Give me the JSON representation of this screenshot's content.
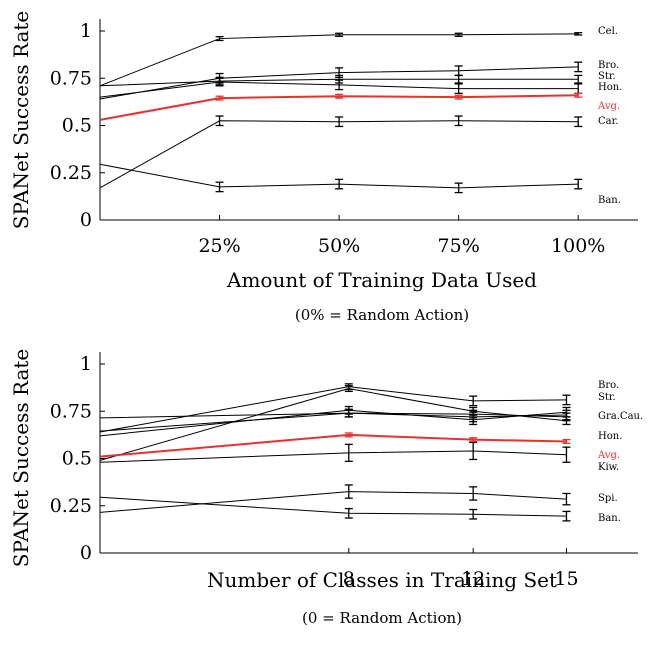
{
  "chart_data": [
    {
      "type": "line",
      "ylabel": "SPANet Success Rate",
      "xlabel": "Amount of Training Data Used",
      "note": "(0% = Random Action)",
      "x": [
        0,
        25,
        50,
        75,
        100
      ],
      "x_tick_values": [
        25,
        50,
        75,
        100
      ],
      "x_tick_labels": [
        "25%",
        "50%",
        "75%",
        "100%"
      ],
      "y_ticks": [
        0,
        0.25,
        0.5,
        0.75,
        1
      ],
      "y_tick_labels": [
        "0",
        "0.25",
        "0.5",
        "0.75",
        "1"
      ],
      "xlim": [
        0,
        112.5
      ],
      "ylim": [
        0,
        1
      ],
      "series": [
        {
          "name": "Cel.",
          "color": "#000000",
          "values": [
            0.71,
            0.96,
            0.98,
            0.98,
            0.985
          ],
          "err": [
            null,
            0.01,
            0.008,
            0.008,
            0.006
          ]
        },
        {
          "name": "Bro.",
          "color": "#000000",
          "values": [
            0.64,
            0.75,
            0.78,
            0.79,
            0.81
          ],
          "err": [
            null,
            0.025,
            0.025,
            0.025,
            0.025
          ]
        },
        {
          "name": "Str.",
          "color": "#000000",
          "values": [
            0.71,
            0.735,
            0.745,
            0.745,
            0.745
          ],
          "err": [
            null,
            0.02,
            0.02,
            0.02,
            0.02
          ]
        },
        {
          "name": "Hon.",
          "color": "#000000",
          "values": [
            0.65,
            0.73,
            0.715,
            0.695,
            0.695
          ],
          "err": [
            null,
            0.02,
            0.025,
            0.025,
            0.025
          ]
        },
        {
          "name": "Avg.",
          "color": "#e8312f",
          "values": [
            0.53,
            0.645,
            0.655,
            0.65,
            0.66
          ],
          "err": [
            null,
            0.01,
            0.01,
            0.01,
            0.01
          ]
        },
        {
          "name": "Car.",
          "color": "#000000",
          "values": [
            0.17,
            0.525,
            0.52,
            0.525,
            0.52
          ],
          "err": [
            null,
            0.025,
            0.025,
            0.025,
            0.025
          ]
        },
        {
          "name": "Ban.",
          "color": "#000000",
          "values": [
            0.295,
            0.175,
            0.19,
            0.17,
            0.19
          ],
          "err": [
            null,
            0.025,
            0.025,
            0.025,
            0.025
          ]
        }
      ]
    },
    {
      "type": "line",
      "ylabel": "SPANet Success Rate",
      "xlabel": "Number of Classes in Training Set",
      "note": "(0 = Random Action)",
      "x": [
        0,
        8,
        12,
        15
      ],
      "x_tick_values": [
        8,
        12,
        15
      ],
      "x_tick_labels": [
        "8",
        "12",
        "15"
      ],
      "y_ticks": [
        0,
        0.25,
        0.5,
        0.75,
        1
      ],
      "y_tick_labels": [
        "0",
        "0.25",
        "0.5",
        "0.75",
        "1"
      ],
      "xlim": [
        0,
        17.3
      ],
      "ylim": [
        0,
        1
      ],
      "series": [
        {
          "name": "Bro.",
          "color": "#000000",
          "values": [
            0.64,
            0.88,
            0.805,
            0.81
          ],
          "err": [
            null,
            0.015,
            0.025,
            0.025
          ]
        },
        {
          "name": "Str.",
          "color": "#000000",
          "values": [
            0.49,
            0.87,
            0.75,
            0.7
          ],
          "err": [
            null,
            0.015,
            0.02,
            0.02
          ]
        },
        {
          "name": "Gra.",
          "color": "#000000",
          "values": [
            0.715,
            0.74,
            0.72,
            0.73
          ],
          "err": [
            null,
            0.02,
            0.025,
            0.025
          ]
        },
        {
          "name": "Cau.",
          "color": "#000000",
          "values": [
            0.62,
            0.755,
            0.705,
            0.745
          ],
          "err": [
            null,
            0.02,
            0.025,
            0.025
          ]
        },
        {
          "name": "Hon.",
          "color": "#000000",
          "values": [
            0.645,
            0.74,
            0.735,
            0.72
          ],
          "err": [
            null,
            0.02,
            0.02,
            0.02
          ]
        },
        {
          "name": "Avg.",
          "color": "#e8312f",
          "values": [
            0.51,
            0.625,
            0.6,
            0.59
          ],
          "err": [
            null,
            0.01,
            0.01,
            0.01
          ]
        },
        {
          "name": "Kiw.",
          "color": "#000000",
          "values": [
            0.48,
            0.53,
            0.54,
            0.52
          ],
          "err": [
            null,
            0.045,
            0.045,
            0.04
          ]
        },
        {
          "name": "Spi.",
          "color": "#000000",
          "values": [
            0.215,
            0.325,
            0.315,
            0.285
          ],
          "err": [
            null,
            0.035,
            0.035,
            0.03
          ]
        },
        {
          "name": "Ban.",
          "color": "#000000",
          "values": [
            0.295,
            0.21,
            0.205,
            0.195
          ],
          "err": [
            null,
            0.025,
            0.025,
            0.025
          ]
        }
      ]
    }
  ]
}
